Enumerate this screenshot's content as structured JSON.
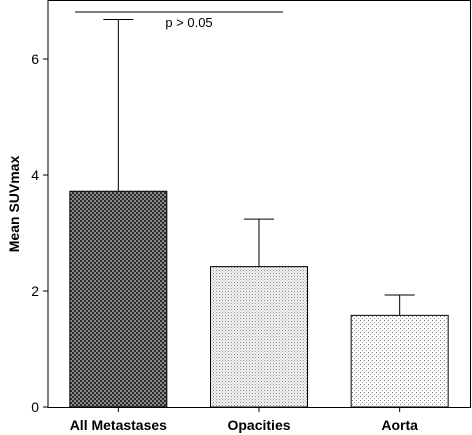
{
  "chart_data": {
    "type": "bar",
    "categories": [
      "All Metastases",
      "Opacities",
      "Aorta"
    ],
    "values": [
      3.72,
      2.42,
      1.58
    ],
    "error_upper": [
      6.68,
      3.24,
      1.93
    ],
    "patterns": [
      "dense-crosshatch",
      "fine-dots",
      "sparse-dots"
    ],
    "xlabel": "",
    "ylabel": "Mean SUVmax",
    "ylim": [
      0,
      7.0
    ],
    "yticks": [
      0,
      2,
      4,
      6
    ],
    "grid": false,
    "annotation": {
      "text": "p > 0.05",
      "spans": [
        "All Metastases",
        "Opacities"
      ]
    }
  }
}
